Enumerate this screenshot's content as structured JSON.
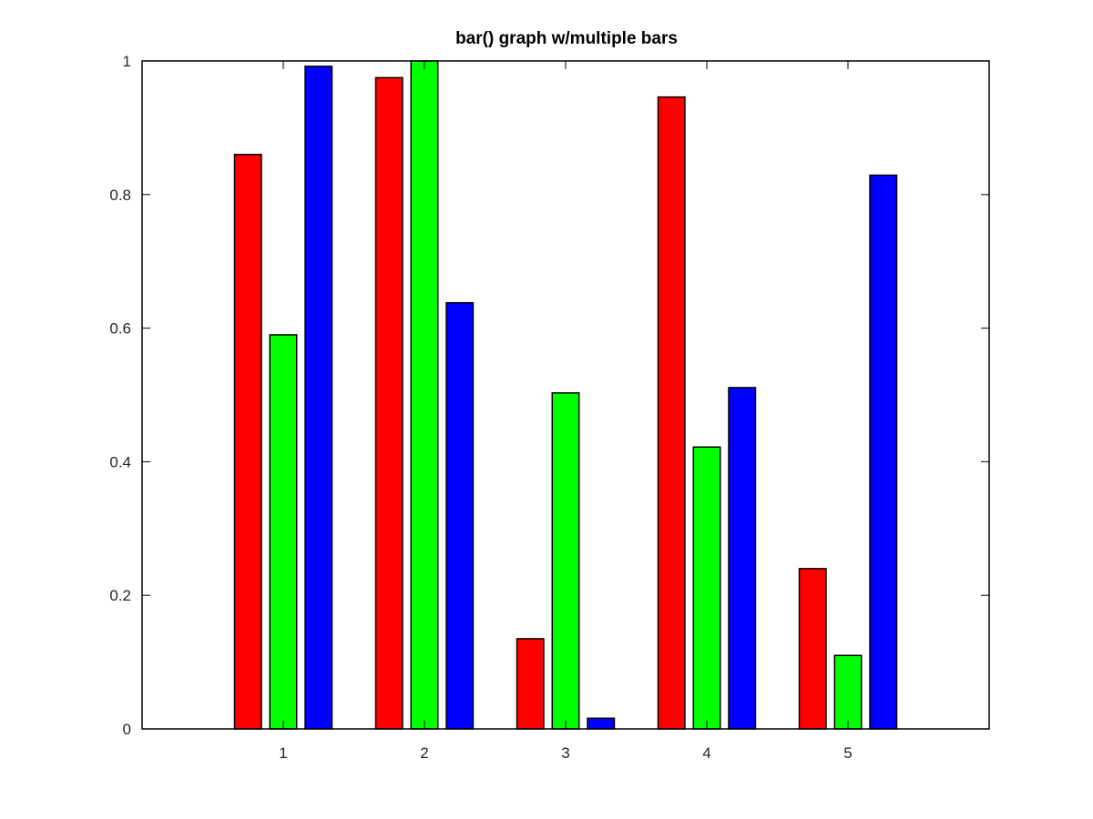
{
  "chart_data": {
    "type": "bar",
    "title": "bar() graph w/multiple bars",
    "xlabel": "",
    "ylabel": "",
    "categories": [
      "1",
      "2",
      "3",
      "4",
      "5"
    ],
    "series": [
      {
        "color": "#ff0000",
        "values": [
          0.86,
          0.975,
          0.135,
          0.946,
          0.24
        ]
      },
      {
        "color": "#00ff00",
        "values": [
          0.59,
          1.0,
          0.503,
          0.422,
          0.11
        ]
      },
      {
        "color": "#0000ff",
        "values": [
          0.992,
          0.638,
          0.016,
          0.511,
          0.829
        ]
      }
    ],
    "xlim": [
      0,
      6
    ],
    "ylim": [
      0,
      1
    ],
    "xticks": [
      "1",
      "2",
      "3",
      "4",
      "5"
    ],
    "yticks": [
      "0",
      "0.2",
      "0.4",
      "0.6",
      "0.8",
      "1"
    ],
    "grid": false,
    "legend": "none",
    "bar_edge_color": "#000000"
  }
}
